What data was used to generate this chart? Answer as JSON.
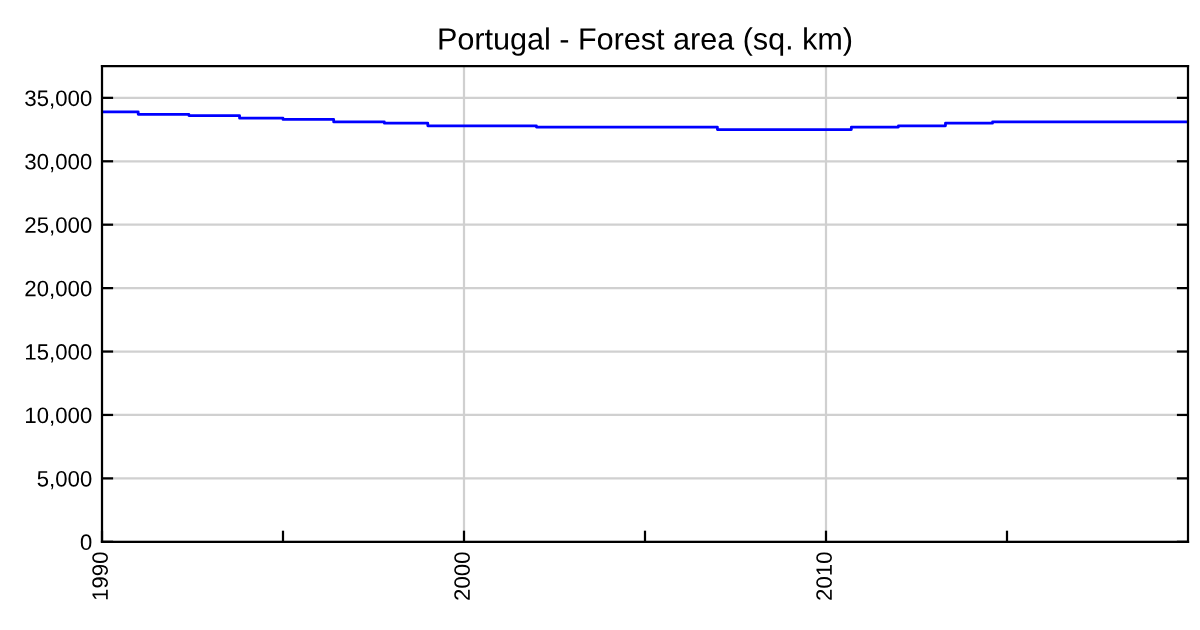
{
  "chart_data": {
    "type": "step",
    "title": "Portugal - Forest area (sq. km)",
    "x": [
      1990,
      1991,
      1992.4,
      1993.8,
      1995,
      1996.4,
      1997.8,
      1999,
      2002,
      2007,
      2010.7,
      2012,
      2013.3,
      2014.6,
      2020
    ],
    "series": [
      {
        "color": "#0000ff",
        "values": [
          33900,
          33700,
          33600,
          33400,
          33300,
          33100,
          33000,
          32800,
          32700,
          32500,
          32700,
          32800,
          33000,
          33100,
          33100
        ]
      }
    ],
    "xlim": [
      1990,
      2020
    ],
    "xticks": [
      1990,
      {
        "value": 1995,
        "label": null
      },
      2000,
      {
        "value": 2005,
        "label": null
      },
      2010,
      {
        "value": 2015,
        "label": null
      }
    ],
    "ylim": [
      0,
      37500
    ],
    "yticks": [
      0,
      {
        "value": 5000,
        "label": "5,000"
      },
      {
        "value": 10000,
        "label": "10,000"
      },
      {
        "value": 15000,
        "label": "15,000"
      },
      {
        "value": 20000,
        "label": "20,000"
      },
      {
        "value": 25000,
        "label": "25,000"
      },
      {
        "value": 30000,
        "label": "30,000"
      },
      {
        "value": 35000,
        "label": "35,000"
      }
    ],
    "grid": true,
    "legend": false,
    "marker": "none",
    "line_style": "solid"
  }
}
